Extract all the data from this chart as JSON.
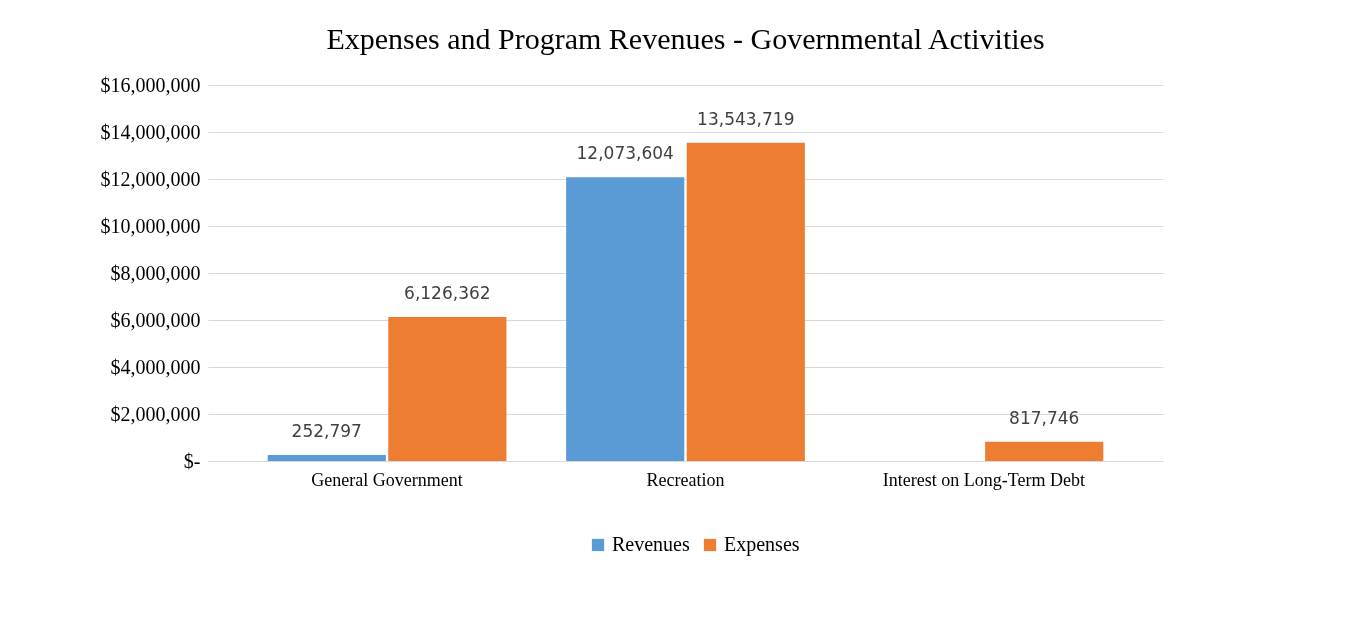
{
  "chart_data": {
    "type": "bar",
    "title": "Expenses and Program Revenues - Governmental Activities",
    "categories": [
      "General Government",
      "Recreation",
      "Interest on Long-Term Debt"
    ],
    "series": [
      {
        "name": "Revenues",
        "color": "#5b9bd5",
        "values": [
          252797,
          12073604,
          null
        ],
        "value_labels": [
          "252,797",
          "12,073,604",
          null
        ]
      },
      {
        "name": "Expenses",
        "color": "#ed7d31",
        "values": [
          6126362,
          13543719,
          817746
        ],
        "value_labels": [
          "6,126,362",
          "13,543,719",
          "817,746"
        ]
      }
    ],
    "ylim": [
      0,
      16000000
    ],
    "yticks": [
      {
        "value": 0,
        "label": "$-"
      },
      {
        "value": 2000000,
        "label": "$2,000,000"
      },
      {
        "value": 4000000,
        "label": "$4,000,000"
      },
      {
        "value": 6000000,
        "label": "$6,000,000"
      },
      {
        "value": 8000000,
        "label": "$8,000,000"
      },
      {
        "value": 10000000,
        "label": "$10,000,000"
      },
      {
        "value": 12000000,
        "label": "$12,000,000"
      },
      {
        "value": 14000000,
        "label": "$14,000,000"
      },
      {
        "value": 16000000,
        "label": "$16,000,000"
      }
    ],
    "grid": "y",
    "legend": "bottom"
  }
}
